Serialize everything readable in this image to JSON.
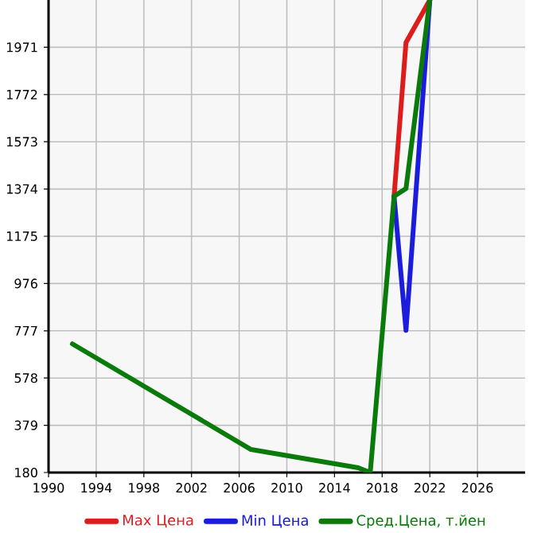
{
  "chart_data": {
    "type": "line",
    "x": [
      1992,
      2007,
      2016,
      2017,
      2019,
      2020,
      2022
    ],
    "series": [
      {
        "name": "Max Цена",
        "color": "#dd1c1c",
        "values": [
          null,
          null,
          null,
          null,
          1343,
          1991,
          2170
        ]
      },
      {
        "name": "Min Цена",
        "color": "#1c1cdd",
        "values": [
          null,
          null,
          null,
          null,
          1343,
          779,
          2170
        ]
      },
      {
        "name": "Сред.Цена, т.йен",
        "color": "#0a7a0a",
        "values": [
          722,
          277,
          200,
          180,
          1343,
          1376,
          2170
        ]
      }
    ],
    "xlim": [
      1990,
      2030
    ],
    "ylim": [
      180,
      2170
    ],
    "xticks": [
      1990,
      1994,
      1998,
      2002,
      2006,
      2010,
      2014,
      2018,
      2022,
      2026
    ],
    "yticks": [
      180,
      379,
      578,
      777,
      976,
      1175,
      1374,
      1573,
      1772,
      1971
    ],
    "grid": true,
    "legend": "bottom",
    "line_style": "solid",
    "marker": "none"
  }
}
